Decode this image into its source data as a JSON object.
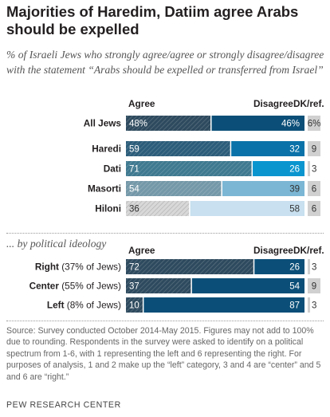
{
  "title": "Majorities of Haredim, Datiim agree Arabs should be expelled",
  "subtitle": "% of Israeli Jews who strongly agree/agree or strongly disagree/disagree with the statement “Arabs should be expelled or transferred from Israel”",
  "section2_label": "... by political ideology",
  "footnote": "Source: Survey conducted October 2014-May 2015. Figures may not add to 100% due to rounding. Respondents in the survey were asked to identify on a political spectrum from 1-6, with 1 representing the left and 6 representing the right. For purposes of analysis, 1 and 2 make up the “left” category, 3 and 4 are “center” and 5 and 6 are “right.”",
  "source_org": "PEW RESEARCH CENTER",
  "chart_data": [
    {
      "type": "bar",
      "orientation": "horizontal",
      "stacked": true,
      "column_headers": [
        "Agree",
        "Disagree",
        "DK/ref."
      ],
      "categories": [
        "All Jews",
        "Haredi",
        "Dati",
        "Masorti",
        "Hiloni"
      ],
      "series": [
        {
          "name": "Agree",
          "values": [
            48,
            59,
            71,
            54,
            36
          ],
          "labels": [
            "48%",
            "59",
            "71",
            "54",
            "36"
          ]
        },
        {
          "name": "Disagree",
          "values": [
            46,
            32,
            26,
            39,
            58
          ],
          "labels": [
            "46%",
            "32",
            "26",
            "39",
            "58"
          ]
        },
        {
          "name": "DK/ref.",
          "values": [
            6,
            9,
            3,
            6,
            6
          ],
          "labels": [
            "6%",
            "9",
            "3",
            "6",
            "6"
          ]
        }
      ],
      "colors": {
        "agree": [
          "#2e4a5e",
          "#2c5d7a",
          "#3e7990",
          "#7498a8",
          "#d8d8d8"
        ],
        "disagree": [
          "#0b4f78",
          "#0a72a8",
          "#0b95cf",
          "#7bb6d4",
          "#c8e0ef"
        ],
        "dk": "#d0d0d0"
      }
    },
    {
      "type": "bar",
      "orientation": "horizontal",
      "stacked": true,
      "column_headers": [
        "Agree",
        "Disagree",
        "DK/ref."
      ],
      "categories": [
        "Right (37% of Jews)",
        "Center (55% of Jews)",
        "Left (8% of Jews)"
      ],
      "category_parts": [
        {
          "bold": "Right",
          "rest": " (37% of Jews)"
        },
        {
          "bold": "Center",
          "rest": " (55% of Jews)"
        },
        {
          "bold": "Left",
          "rest": " (8% of Jews)"
        }
      ],
      "series": [
        {
          "name": "Agree",
          "values": [
            72,
            37,
            10
          ],
          "labels": [
            "72",
            "37",
            "10"
          ]
        },
        {
          "name": "Disagree",
          "values": [
            26,
            54,
            87
          ],
          "labels": [
            "26",
            "54",
            "87"
          ]
        },
        {
          "name": "DK/ref.",
          "values": [
            3,
            9,
            3
          ],
          "labels": [
            "3",
            "9",
            "3"
          ]
        }
      ],
      "colors": {
        "agree": "#2e4a5e",
        "disagree": "#0b4f78",
        "dk": "#d0d0d0"
      }
    }
  ]
}
